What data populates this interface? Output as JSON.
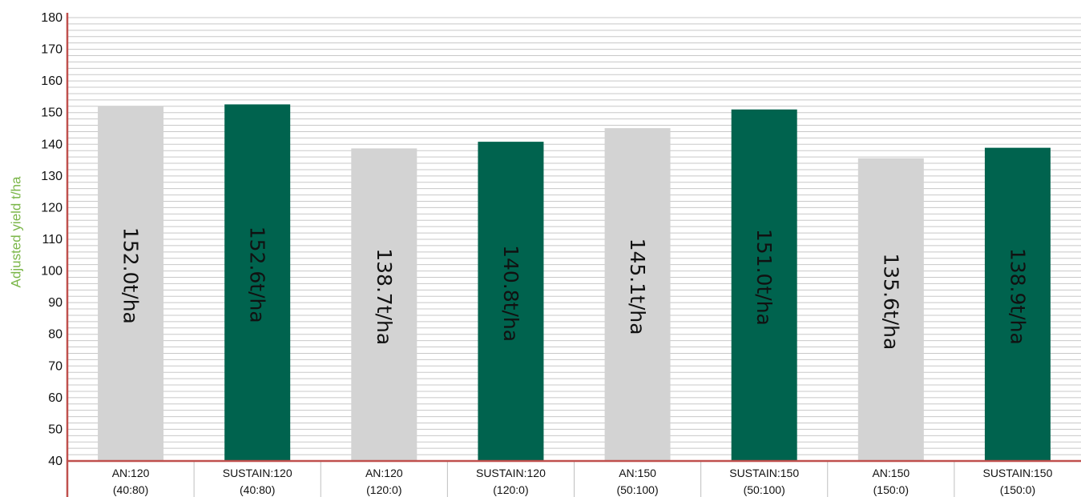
{
  "chart_data": {
    "type": "bar",
    "ylabel": "Adjusted yield t/ha",
    "ylim": [
      40,
      180
    ],
    "yticks": [
      "40",
      "50",
      "60",
      "70",
      "80",
      "90",
      "100",
      "110",
      "120",
      "130",
      "140",
      "150",
      "160",
      "170",
      "180"
    ],
    "grid": true,
    "categories": [
      {
        "line1": "AN:120",
        "line2": "(40:80)"
      },
      {
        "line1": "SUSTAIN:120",
        "line2": "(40:80)"
      },
      {
        "line1": "AN:120",
        "line2": "(120:0)"
      },
      {
        "line1": "SUSTAIN:120",
        "line2": "(120:0)"
      },
      {
        "line1": "AN:150",
        "line2": "(50:100)"
      },
      {
        "line1": "SUSTAIN:150",
        "line2": "(50:100)"
      },
      {
        "line1": "AN:150",
        "line2": "(150:0)"
      },
      {
        "line1": "SUSTAIN:150",
        "line2": "(150:0)"
      }
    ],
    "values": [
      152.0,
      152.6,
      138.7,
      140.8,
      145.1,
      151.0,
      135.6,
      138.9
    ],
    "value_labels": [
      "152.0t/ha",
      "152.6t/ha",
      "138.7t/ha",
      "140.8t/ha",
      "145.1t/ha",
      "151.0t/ha",
      "135.6t/ha",
      "138.9t/ha"
    ],
    "bar_colors": [
      "#d3d3d3",
      "#00634e",
      "#d3d3d3",
      "#00634e",
      "#d3d3d3",
      "#00634e",
      "#d3d3d3",
      "#00634e"
    ],
    "colors": {
      "axis": "#c0504d",
      "grid": "#c8c8c8",
      "ylabel": "#7ab648",
      "separator": "#bfbfbf"
    }
  }
}
